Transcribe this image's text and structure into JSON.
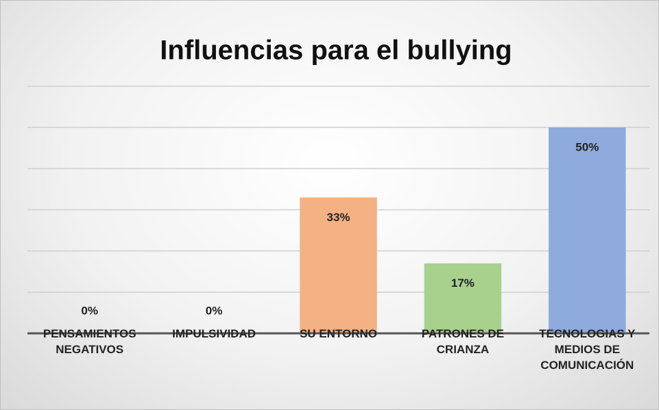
{
  "chart_data": {
    "type": "bar",
    "title": "Influencias para el bullying",
    "categories": [
      "PENSAMIENTOS NEGATIVOS",
      "IMPULSIVIDAD",
      "SU ENTORNO",
      "PATRONES DE CRIANZA",
      "TECNOLOGIAS Y MEDIOS DE COMUNICACIÓN"
    ],
    "values": [
      0,
      0,
      33,
      17,
      50
    ],
    "value_labels": [
      "0%",
      "0%",
      "33%",
      "17%",
      "50%"
    ],
    "colors": [
      "#f4b183",
      "#f4b183",
      "#f4b183",
      "#a9d18e",
      "#8faadc"
    ],
    "ylim": [
      0,
      60
    ],
    "yticks": [
      0,
      10,
      20,
      30,
      40,
      50,
      60
    ],
    "grid": true
  }
}
